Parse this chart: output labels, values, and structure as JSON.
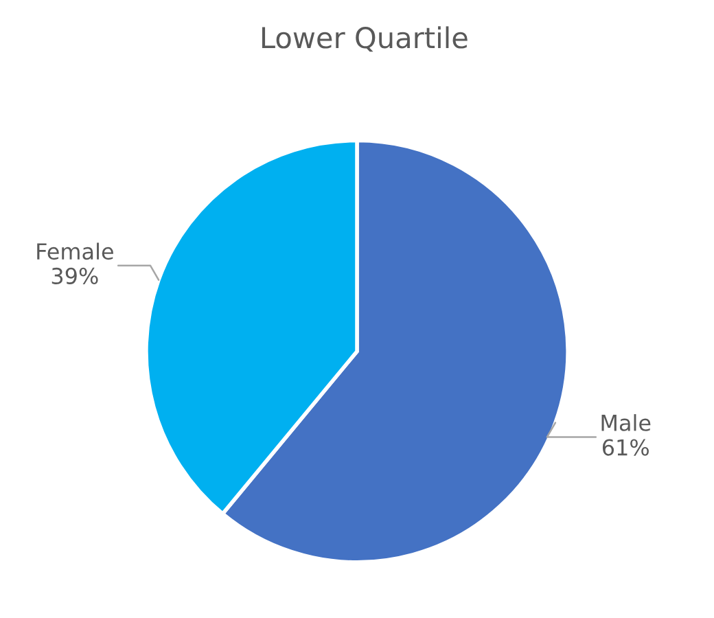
{
  "chart_data": {
    "type": "pie",
    "title": "Lower Quartile",
    "categories": [
      "Male",
      "Female"
    ],
    "values": [
      61,
      39
    ],
    "value_labels": [
      "61%",
      "39%"
    ],
    "colors": [
      "#4472c4",
      "#00b0f0"
    ]
  }
}
